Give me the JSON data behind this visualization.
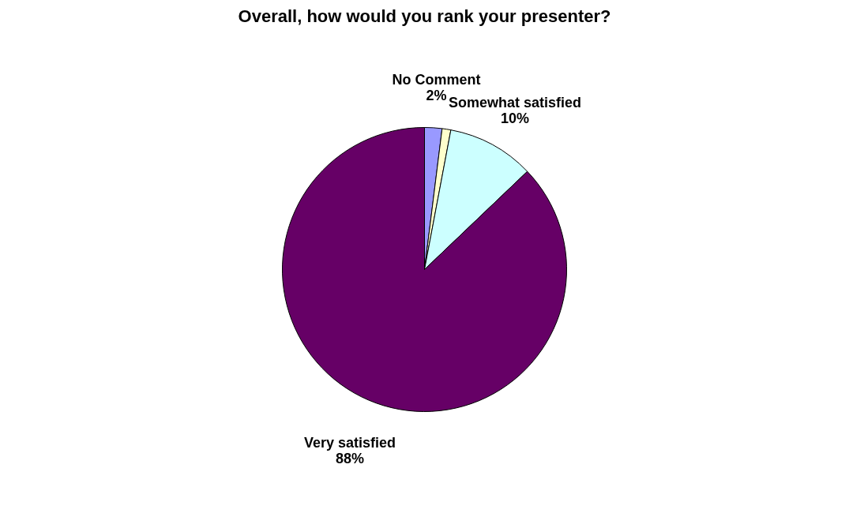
{
  "chart_data": {
    "type": "pie",
    "title": "Overall, how would you rank your presenter?",
    "categories": [
      "No Comment",
      null,
      "Somewhat satisfied",
      "Very satisfied"
    ],
    "values": [
      2,
      1,
      10,
      88
    ],
    "value_labels": [
      "2%",
      null,
      "10%",
      "88%"
    ],
    "colors": [
      "#9999ff",
      "#ffffcc",
      "#ccffff",
      "#660066"
    ]
  }
}
